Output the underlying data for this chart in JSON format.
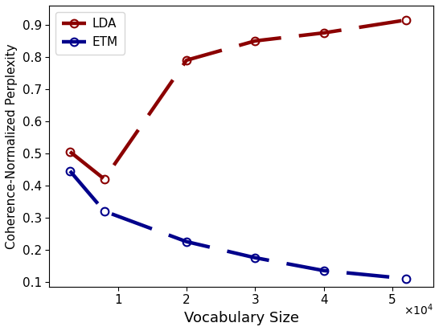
{
  "lda_x": [
    3000,
    8000,
    20000,
    30000,
    40000,
    52000
  ],
  "lda_y": [
    0.505,
    0.42,
    0.79,
    0.85,
    0.875,
    0.915
  ],
  "etm_x": [
    3000,
    8000,
    20000,
    30000,
    40000,
    52000
  ],
  "etm_y": [
    0.445,
    0.32,
    0.225,
    0.175,
    0.135,
    0.11
  ],
  "lda_color": "#8B0000",
  "etm_color": "#00008B",
  "lda_label": "LDA",
  "etm_label": "ETM",
  "xlabel": "Vocabulary Size",
  "ylabel": "Coherence-Normalized Perplexity",
  "ylim": [
    0.085,
    0.96
  ],
  "xlim": [
    0,
    56000
  ],
  "xtick_values": [
    10000,
    20000,
    30000,
    40000,
    50000
  ],
  "xtick_labels": [
    "1",
    "2",
    "3",
    "4",
    "5"
  ],
  "linewidth": 3.2,
  "marker_size": 7,
  "dashes_on": 12,
  "dashes_off": 5
}
